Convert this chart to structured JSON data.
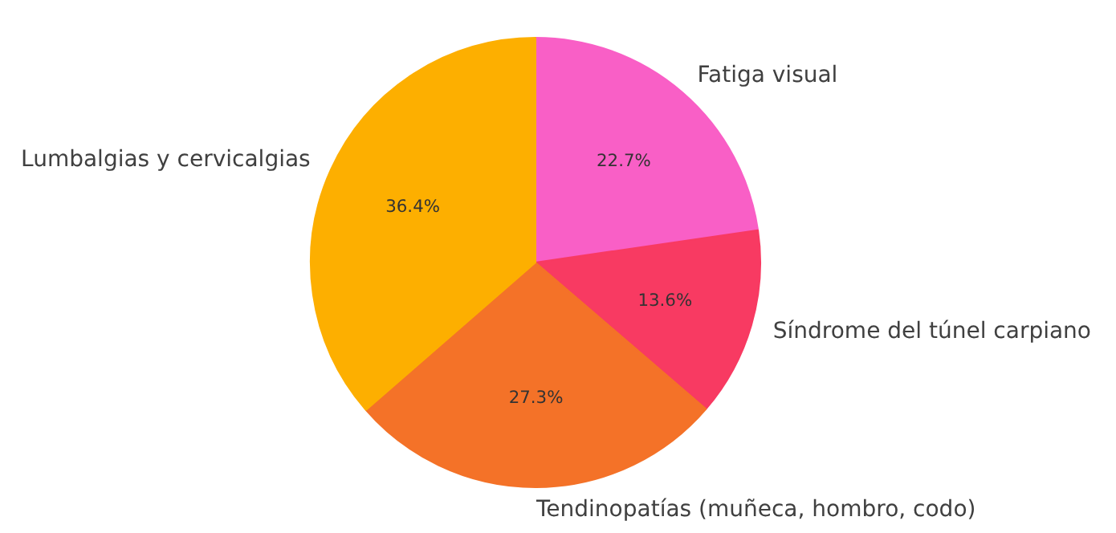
{
  "chart_data": {
    "type": "pie",
    "categories": [
      "Fatiga visual",
      "Síndrome del túnel carpiano",
      "Tendinopatías (muñeca, hombro, codo)",
      "Lumbalgias y cervicalgias"
    ],
    "values": [
      22.7,
      13.6,
      27.3,
      36.4
    ],
    "colors": [
      "#f95fc6",
      "#f83a62",
      "#f47228",
      "#fdaf00"
    ],
    "value_labels": [
      "22.7%",
      "13.6%",
      "27.3%",
      "36.4%"
    ]
  }
}
